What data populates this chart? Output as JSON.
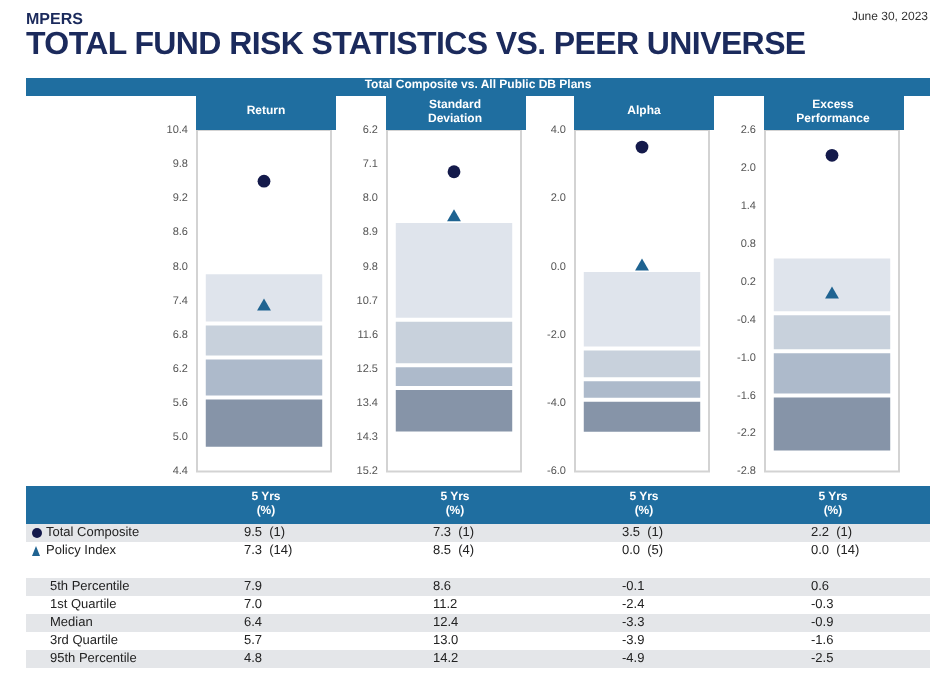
{
  "chart_data": [
    {
      "type": "other",
      "title": "TOTAL FUND RISK STATISTICS VS. PEER UNIVERSE",
      "subtitle": "Total Composite vs. All Public DB Plans",
      "annotations": [
        "MPERS",
        "June 30, 2023",
        "5th Percentile",
        "1st Quartile",
        "Median",
        "3rd Quartile",
        "95th Percentile"
      ]
    },
    {
      "type": "bar",
      "title": "Return",
      "categories": [
        "5 Yrs\n(%)"
      ],
      "tick_labels": "y",
      "ylim": [
        4.4,
        10.4
      ],
      "yticks": [
        4.4,
        {
          "value": 5,
          "label": "5.0"
        },
        5.6,
        6.2,
        6.8,
        7.4,
        {
          "value": 8,
          "label": "8.0"
        },
        8.6,
        9.2,
        9.8,
        10.4
      ],
      "annotations": [
        "9.5  (1)",
        "7.3  (14)",
        "7.9",
        "7.0",
        "6.4",
        "5.7",
        "4.8"
      ],
      "series": [
        {
          "type": "bar",
          "color": "#8694a8",
          "base": [
            4.8
          ],
          "values": [
            0.9
          ]
        },
        {
          "type": "bar",
          "color": "#adbacb",
          "base": [
            5.7
          ],
          "values": [
            0.7
          ]
        },
        {
          "type": "bar",
          "color": "#c8d1dc",
          "base": [
            6.4
          ],
          "values": [
            0.6
          ]
        },
        {
          "type": "bar",
          "color": "#dfe4ec",
          "base": [
            7.0
          ],
          "values": [
            0.9
          ]
        },
        {
          "name": "Total Composite",
          "type": "scatter",
          "marker": "circle",
          "color": "#141a4b",
          "x": [
            "5 Yrs\n(%)"
          ],
          "values": [
            9.5
          ]
        },
        {
          "name": "Policy Index",
          "type": "scatter",
          "marker": "triangle",
          "color": "#1f6391",
          "x": [
            "5 Yrs\n(%)"
          ],
          "values": [
            7.3
          ]
        }
      ]
    },
    {
      "type": "bar",
      "title": "Standard Deviation",
      "categories": [
        "5 Yrs\n(%)"
      ],
      "tick_labels": "y",
      "ylim": [
        15.2,
        6.2
      ],
      "yticks": [
        6.2,
        7.1,
        {
          "value": 8,
          "label": "8.0"
        },
        8.9,
        9.8,
        10.7,
        11.6,
        12.5,
        13.4,
        14.3,
        15.2
      ],
      "annotations": [
        "7.3  (1)",
        "8.5  (4)",
        "8.6",
        "11.2",
        "12.4",
        "13.0",
        "14.2"
      ],
      "series": [
        {
          "type": "bar",
          "color": "#dfe4ec",
          "base": [
            8.6
          ],
          "values": [
            2.6
          ]
        },
        {
          "type": "bar",
          "color": "#c8d1dc",
          "base": [
            11.2
          ],
          "values": [
            1.2
          ]
        },
        {
          "type": "bar",
          "color": "#adbacb",
          "base": [
            12.4
          ],
          "values": [
            0.6
          ]
        },
        {
          "type": "bar",
          "color": "#8694a8",
          "base": [
            13.0
          ],
          "values": [
            1.2
          ]
        },
        {
          "type": "scatter",
          "marker": "circle",
          "color": "#141a4b",
          "x": [
            "5 Yrs\n(%)"
          ],
          "values": [
            7.3
          ]
        },
        {
          "type": "scatter",
          "marker": "triangle",
          "color": "#1f6391",
          "x": [
            "5 Yrs\n(%)"
          ],
          "values": [
            8.5
          ]
        }
      ]
    },
    {
      "type": "bar",
      "title": "Alpha",
      "categories": [
        "5 Yrs\n(%)"
      ],
      "tick_labels": "y",
      "ylim": [
        -6,
        4
      ],
      "yticks": [
        {
          "value": -6,
          "label": "-6.0"
        },
        {
          "value": -4,
          "label": "-4.0"
        },
        {
          "value": -2,
          "label": "-2.0"
        },
        {
          "value": 0,
          "label": "0.0"
        },
        {
          "value": 2,
          "label": "2.0"
        },
        {
          "value": 4,
          "label": "4.0"
        }
      ],
      "annotations": [
        "3.5  (1)",
        "0.0  (5)",
        "-0.1",
        "-2.4",
        "-3.3",
        "-3.9",
        "-4.9"
      ],
      "series": [
        {
          "type": "bar",
          "color": "#8694a8",
          "base": [
            -4.9
          ],
          "values": [
            1.0
          ]
        },
        {
          "type": "bar",
          "color": "#adbacb",
          "base": [
            -3.9
          ],
          "values": [
            0.6
          ]
        },
        {
          "type": "bar",
          "color": "#c8d1dc",
          "base": [
            -3.3
          ],
          "values": [
            0.9
          ]
        },
        {
          "type": "bar",
          "color": "#dfe4ec",
          "base": [
            -2.4
          ],
          "values": [
            2.3
          ]
        },
        {
          "type": "scatter",
          "marker": "circle",
          "color": "#141a4b",
          "x": [
            "5 Yrs\n(%)"
          ],
          "values": [
            3.5
          ]
        },
        {
          "type": "scatter",
          "marker": "triangle",
          "color": "#1f6391",
          "x": [
            "5 Yrs\n(%)"
          ],
          "values": [
            0.0
          ]
        }
      ]
    },
    {
      "type": "bar",
      "title": "Excess Performance",
      "categories": [
        "5 Yrs\n(%)"
      ],
      "tick_labels": "y",
      "ylim": [
        -2.8,
        2.6
      ],
      "yticks": [
        -2.8,
        -2.2,
        -1.6,
        {
          "value": -1,
          "label": "-1.0"
        },
        -0.4,
        0.2,
        0.8,
        1.4,
        {
          "value": 2,
          "label": "2.0"
        },
        2.6
      ],
      "annotations": [
        "2.2  (1)",
        "0.0  (14)",
        "0.6",
        "-0.3",
        "-0.9",
        "-1.6",
        "-2.5"
      ],
      "series": [
        {
          "type": "bar",
          "color": "#8694a8",
          "base": [
            -2.5
          ],
          "values": [
            0.9
          ]
        },
        {
          "type": "bar",
          "color": "#adbacb",
          "base": [
            -1.6
          ],
          "values": [
            0.7
          ]
        },
        {
          "type": "bar",
          "color": "#c8d1dc",
          "base": [
            -0.9
          ],
          "values": [
            0.6
          ]
        },
        {
          "type": "bar",
          "color": "#dfe4ec",
          "base": [
            -0.3
          ],
          "values": [
            0.9
          ]
        },
        {
          "type": "scatter",
          "marker": "circle",
          "color": "#141a4b",
          "x": [
            "5 Yrs\n(%)"
          ],
          "values": [
            2.2
          ]
        },
        {
          "type": "scatter",
          "marker": "triangle",
          "color": "#1f6391",
          "x": [
            "5 Yrs\n(%)"
          ],
          "values": [
            0.0
          ]
        }
      ]
    }
  ]
}
